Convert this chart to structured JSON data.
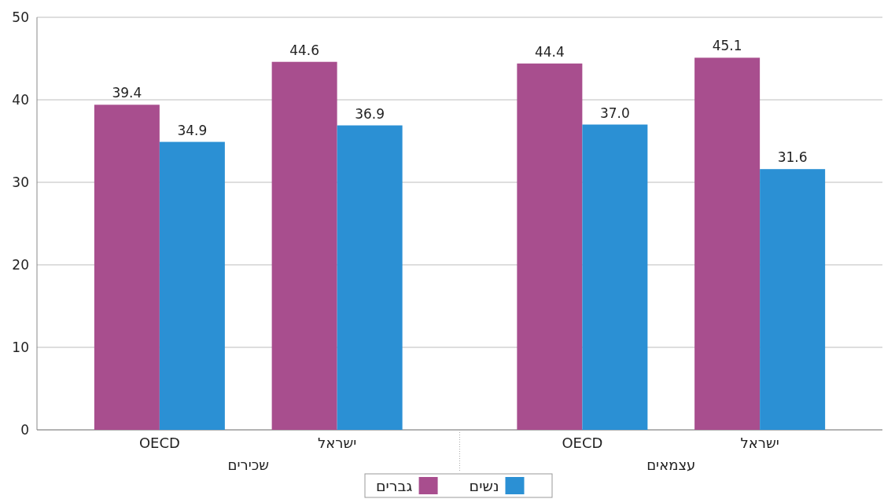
{
  "chart_data": {
    "type": "bar",
    "categories": [
      "OECD",
      "ישראל",
      "OECD",
      "ישראל"
    ],
    "annotations": [
      "שכירים",
      "עצמאים"
    ],
    "series": [
      {
        "name": "גברים",
        "color": "#a84e8e",
        "values": [
          39.4,
          44.6,
          44.4,
          45.1
        ]
      },
      {
        "name": "נשים",
        "color": "#2b90d4",
        "values": [
          34.9,
          36.9,
          37.0,
          31.6
        ]
      }
    ],
    "value_labels": [
      [
        "39.4",
        "44.6",
        "44.4",
        "45.1"
      ],
      [
        "34.9",
        "36.9",
        "37.0",
        "31.6"
      ]
    ],
    "ylim": [
      0,
      50
    ],
    "yticks": [
      0,
      10,
      20,
      30,
      40,
      50
    ],
    "grid": "y",
    "legend": "bottom"
  }
}
